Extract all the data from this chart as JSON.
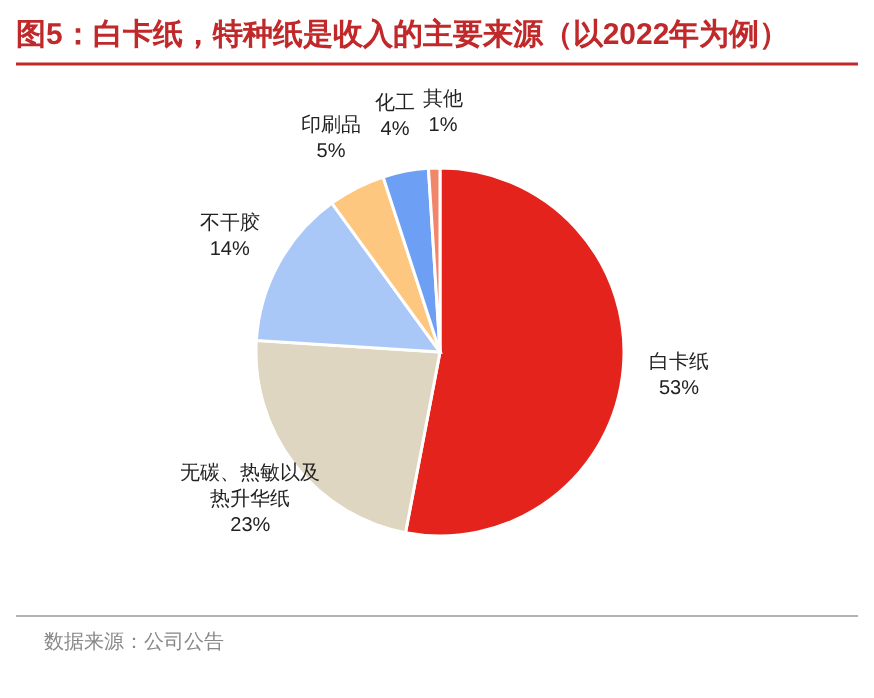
{
  "chart_data": {
    "type": "pie",
    "title": "图5：白卡纸，特种纸是收入的主要来源（以2022年为例）",
    "categories": [
      "白卡纸",
      "无碳、热敏以及热升华纸",
      "不干胶",
      "印刷品",
      "化工",
      "其他"
    ],
    "values": [
      53,
      23,
      14,
      5,
      4,
      1
    ],
    "colors": [
      "#e3231c",
      "#ded6c0",
      "#a9c8f7",
      "#fdc77f",
      "#6d9ff5",
      "#f2866b"
    ],
    "value_labels": [
      "53%",
      "23%",
      "14%",
      "5%",
      "4%",
      "1%"
    ],
    "annotations": [
      "数据来源：公司公告"
    ]
  }
}
